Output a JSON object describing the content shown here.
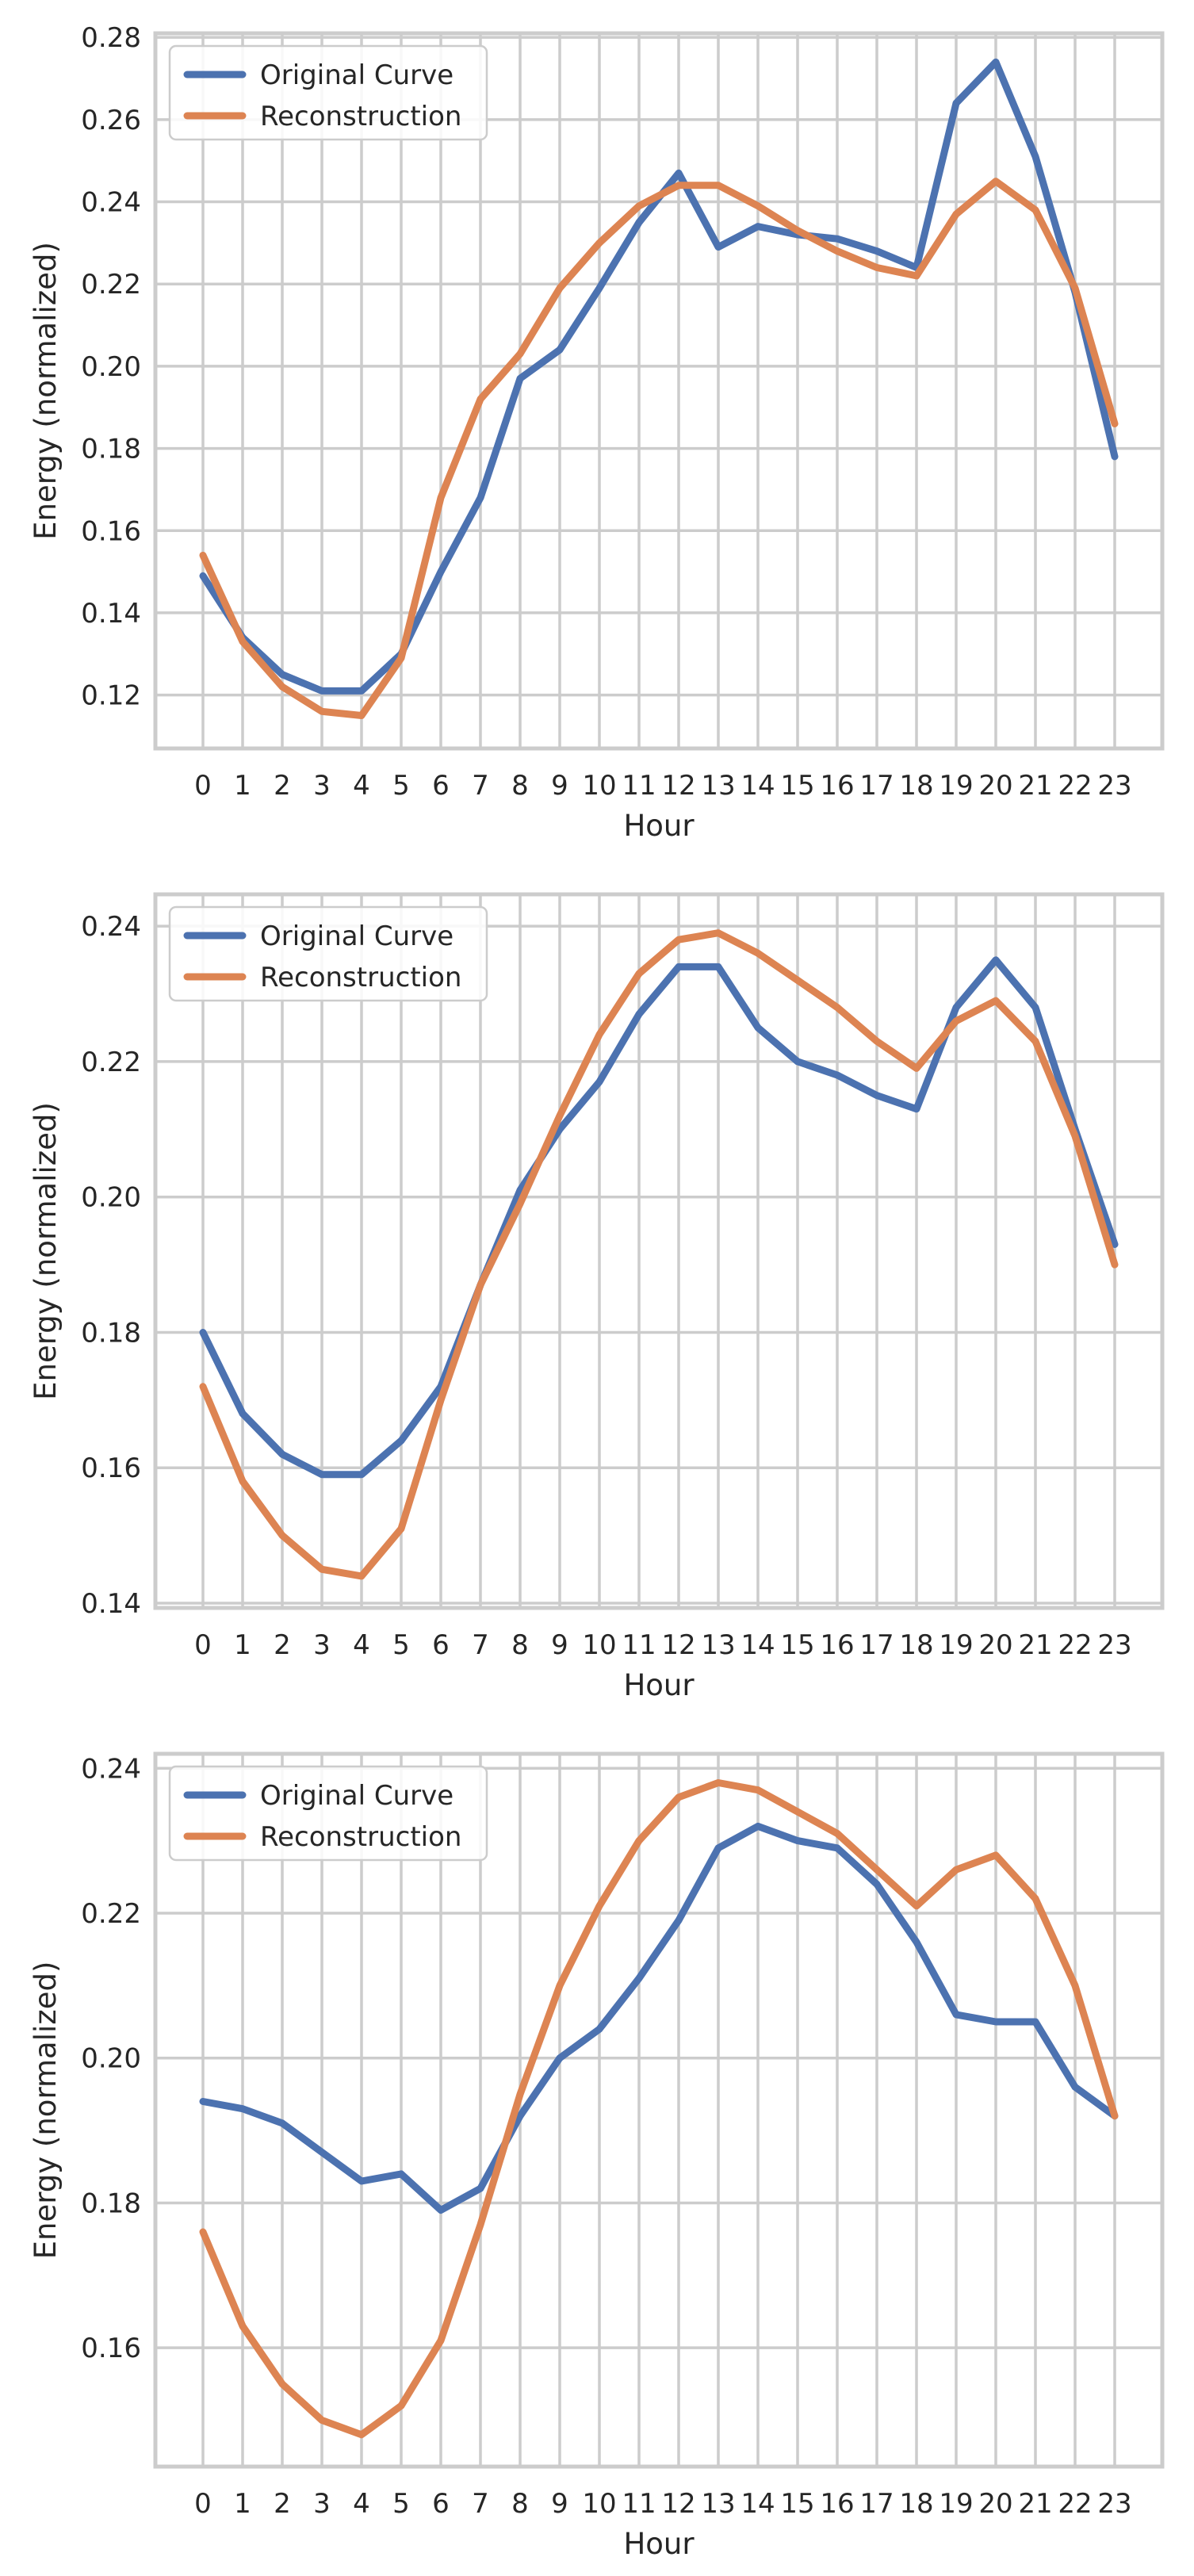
{
  "colors": {
    "original": "#4c72b0",
    "reconstruction": "#dd8452",
    "grid": "#cccccc",
    "frame": "#cccccc",
    "background": "#ffffff"
  },
  "chart_data": [
    {
      "type": "line",
      "xlabel": "Hour",
      "ylabel": "Energy (normalized)",
      "x": [
        0,
        1,
        2,
        3,
        4,
        5,
        6,
        7,
        8,
        9,
        10,
        11,
        12,
        13,
        14,
        15,
        16,
        17,
        18,
        19,
        20,
        21,
        22,
        23
      ],
      "xticks": [
        "0",
        "1",
        "2",
        "3",
        "4",
        "5",
        "6",
        "7",
        "8",
        "9",
        "10",
        "11",
        "12",
        "13",
        "14",
        "15",
        "16",
        "17",
        "18",
        "19",
        "20",
        "21",
        "22",
        "23"
      ],
      "ylim": [
        0.107,
        0.281
      ],
      "yticks": [
        0.12,
        0.14,
        0.16,
        0.18,
        0.2,
        0.22,
        0.24,
        0.26,
        0.28
      ],
      "ytick_labels": [
        "0.12",
        "0.14",
        "0.16",
        "0.18",
        "0.20",
        "0.22",
        "0.24",
        "0.26",
        "0.28"
      ],
      "grid": true,
      "legend": "top-left",
      "series": [
        {
          "name": "Original Curve",
          "color": "#4c72b0",
          "values": [
            0.149,
            0.134,
            0.125,
            0.121,
            0.121,
            0.13,
            0.15,
            0.168,
            0.197,
            0.204,
            0.219,
            0.235,
            0.247,
            0.229,
            0.234,
            0.232,
            0.231,
            0.228,
            0.224,
            0.264,
            0.274,
            0.251,
            0.218,
            0.178
          ]
        },
        {
          "name": "Reconstruction",
          "color": "#dd8452",
          "values": [
            0.154,
            0.133,
            0.122,
            0.116,
            0.115,
            0.129,
            0.168,
            0.192,
            0.203,
            0.219,
            0.23,
            0.239,
            0.244,
            0.244,
            0.239,
            0.233,
            0.228,
            0.224,
            0.222,
            0.237,
            0.245,
            0.238,
            0.219,
            0.186
          ]
        }
      ]
    },
    {
      "type": "line",
      "xlabel": "Hour",
      "ylabel": "Energy (normalized)",
      "x": [
        0,
        1,
        2,
        3,
        4,
        5,
        6,
        7,
        8,
        9,
        10,
        11,
        12,
        13,
        14,
        15,
        16,
        17,
        18,
        19,
        20,
        21,
        22,
        23
      ],
      "xticks": [
        "0",
        "1",
        "2",
        "3",
        "4",
        "5",
        "6",
        "7",
        "8",
        "9",
        "10",
        "11",
        "12",
        "13",
        "14",
        "15",
        "16",
        "17",
        "18",
        "19",
        "20",
        "21",
        "22",
        "23"
      ],
      "ylim": [
        0.1393,
        0.2447
      ],
      "yticks": [
        0.14,
        0.16,
        0.18,
        0.2,
        0.22,
        0.24
      ],
      "ytick_labels": [
        "0.14",
        "0.16",
        "0.18",
        "0.20",
        "0.22",
        "0.24"
      ],
      "grid": true,
      "legend": "top-left",
      "series": [
        {
          "name": "Original Curve",
          "color": "#4c72b0",
          "values": [
            0.18,
            0.168,
            0.162,
            0.159,
            0.159,
            0.164,
            0.172,
            0.187,
            0.201,
            0.21,
            0.217,
            0.227,
            0.234,
            0.234,
            0.225,
            0.22,
            0.218,
            0.215,
            0.213,
            0.228,
            0.235,
            0.228,
            0.21,
            0.193
          ]
        },
        {
          "name": "Reconstruction",
          "color": "#dd8452",
          "values": [
            0.172,
            0.158,
            0.15,
            0.145,
            0.144,
            0.151,
            0.17,
            0.187,
            0.199,
            0.212,
            0.224,
            0.233,
            0.238,
            0.239,
            0.236,
            0.232,
            0.228,
            0.223,
            0.219,
            0.226,
            0.229,
            0.223,
            0.209,
            0.19
          ]
        }
      ]
    },
    {
      "type": "line",
      "xlabel": "Hour",
      "ylabel": "Energy (normalized)",
      "x": [
        0,
        1,
        2,
        3,
        4,
        5,
        6,
        7,
        8,
        9,
        10,
        11,
        12,
        13,
        14,
        15,
        16,
        17,
        18,
        19,
        20,
        21,
        22,
        23
      ],
      "xticks": [
        "0",
        "1",
        "2",
        "3",
        "4",
        "5",
        "6",
        "7",
        "8",
        "9",
        "10",
        "11",
        "12",
        "13",
        "14",
        "15",
        "16",
        "17",
        "18",
        "19",
        "20",
        "21",
        "22",
        "23"
      ],
      "ylim": [
        0.1436,
        0.242
      ],
      "yticks": [
        0.16,
        0.18,
        0.2,
        0.22,
        0.24
      ],
      "ytick_labels": [
        "0.16",
        "0.18",
        "0.20",
        "0.22",
        "0.24"
      ],
      "grid": true,
      "legend": "top-left",
      "series": [
        {
          "name": "Original Curve",
          "color": "#4c72b0",
          "values": [
            0.194,
            0.193,
            0.191,
            0.187,
            0.183,
            0.184,
            0.179,
            0.182,
            0.192,
            0.2,
            0.204,
            0.211,
            0.219,
            0.229,
            0.232,
            0.23,
            0.229,
            0.224,
            0.216,
            0.206,
            0.205,
            0.205,
            0.196,
            0.192
          ]
        },
        {
          "name": "Reconstruction",
          "color": "#dd8452",
          "values": [
            0.176,
            0.163,
            0.155,
            0.15,
            0.148,
            0.152,
            0.161,
            0.177,
            0.195,
            0.21,
            0.221,
            0.23,
            0.236,
            0.238,
            0.237,
            0.234,
            0.231,
            0.226,
            0.221,
            0.226,
            0.228,
            0.222,
            0.21,
            0.192
          ]
        }
      ]
    }
  ]
}
